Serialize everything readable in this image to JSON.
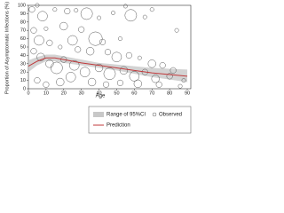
{
  "chart_data": {
    "type": "bubble",
    "xlabel": "Age",
    "ylabel": "Proportion of Asymptomatic Infections (%)",
    "xlim": [
      0,
      92
    ],
    "ylim": [
      0,
      100
    ],
    "xticks": [
      0,
      10,
      20,
      30,
      40,
      50,
      60,
      70,
      80,
      90
    ],
    "yticks": [
      0,
      10,
      20,
      30,
      40,
      50,
      60,
      70,
      80,
      90,
      100
    ],
    "legend": "bottom-right",
    "band": {
      "name": "Range of 95%CI",
      "color": "#c8c8c8",
      "x": [
        0,
        5,
        10,
        15,
        20,
        30,
        40,
        50,
        60,
        70,
        80,
        90
      ],
      "lower": [
        20,
        28,
        33,
        33,
        31,
        28,
        25,
        22,
        18,
        14,
        11,
        8
      ],
      "upper": [
        34,
        38,
        41,
        41,
        39,
        35,
        31,
        29,
        27,
        25,
        24,
        23
      ]
    },
    "series": [
      {
        "name": "Observed",
        "color": "#555555",
        "x": [
          2,
          5,
          8,
          15,
          22,
          27,
          33,
          40,
          48,
          55,
          58,
          66,
          70,
          84,
          3,
          10,
          20,
          30,
          38,
          42,
          52,
          6,
          12,
          18,
          25,
          28,
          35,
          45,
          50,
          57,
          63,
          70,
          76,
          82,
          3,
          7,
          12,
          16,
          20,
          26,
          32,
          40,
          46,
          54,
          60,
          66,
          72,
          80,
          88,
          5,
          10,
          18,
          24,
          36,
          44,
          52,
          62,
          74,
          86
        ],
        "values": [
          95,
          100,
          87,
          95,
          93,
          94,
          90,
          85,
          91,
          99,
          88,
          86,
          95,
          70,
          70,
          72,
          75,
          71,
          60,
          56,
          60,
          58,
          55,
          50,
          58,
          47,
          45,
          44,
          38,
          40,
          37,
          30,
          28,
          22,
          45,
          38,
          30,
          25,
          35,
          28,
          20,
          25,
          18,
          22,
          15,
          20,
          12,
          15,
          10,
          10,
          5,
          8,
          14,
          8,
          5,
          7,
          6,
          5,
          3
        ],
        "sizes": [
          3,
          2,
          5,
          2,
          3,
          2,
          6,
          2,
          2,
          2,
          6,
          2,
          2,
          2,
          3,
          2,
          4,
          3,
          7,
          3,
          2,
          5,
          3,
          2,
          5,
          3,
          4,
          3,
          5,
          3,
          2,
          4,
          3,
          3,
          3,
          4,
          4,
          6,
          3,
          5,
          5,
          4,
          6,
          4,
          5,
          3,
          4,
          3,
          2,
          3,
          3,
          4,
          5,
          4,
          3,
          3,
          4,
          3,
          2
        ]
      },
      {
        "name": "Prediction",
        "color": "#c0393b",
        "x": [
          0,
          5,
          10,
          15,
          20,
          30,
          40,
          50,
          60,
          70,
          80,
          90
        ],
        "values": [
          27,
          33,
          37,
          37,
          35,
          31,
          28,
          25,
          22,
          19,
          17,
          15
        ]
      }
    ]
  }
}
